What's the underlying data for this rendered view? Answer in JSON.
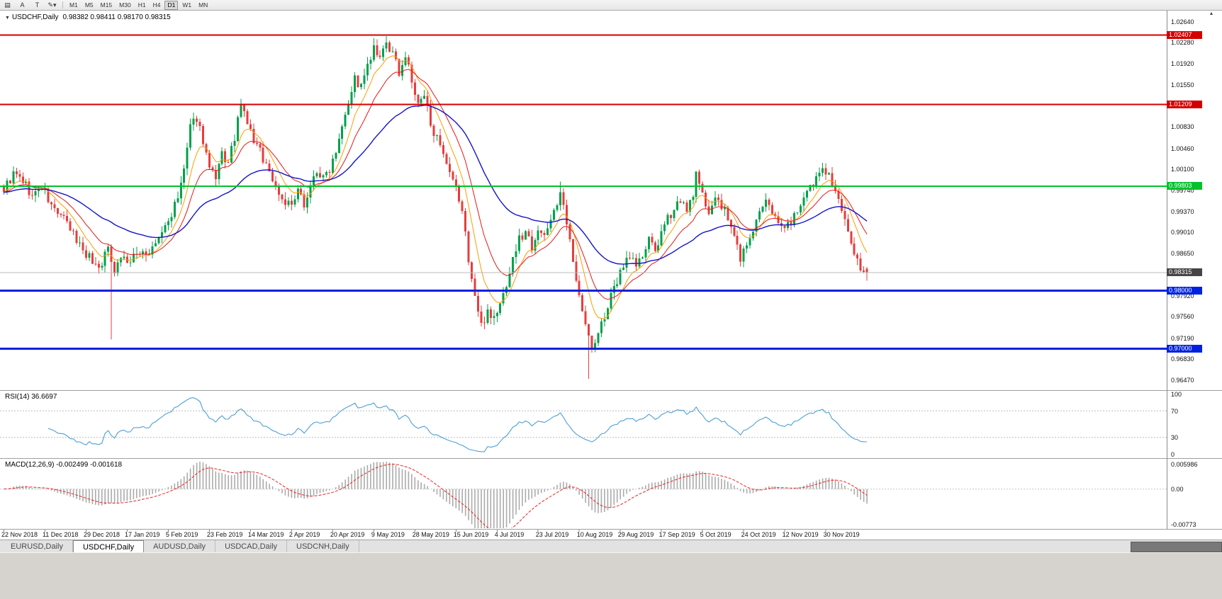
{
  "toolbar": {
    "tools": [
      {
        "name": "charts-bar-icon",
        "glyph": "▤"
      },
      {
        "name": "text-label-icon",
        "glyph": "A"
      },
      {
        "name": "shapes-icon",
        "glyph": "T"
      },
      {
        "name": "line-studies-icon",
        "glyph": "✎",
        "caret": "▾"
      }
    ],
    "timeframes": [
      {
        "label": "M1",
        "active": false
      },
      {
        "label": "M5",
        "active": false
      },
      {
        "label": "M15",
        "active": false
      },
      {
        "label": "M30",
        "active": false
      },
      {
        "label": "H1",
        "active": false
      },
      {
        "label": "H4",
        "active": false
      },
      {
        "label": "D1",
        "active": true
      },
      {
        "label": "W1",
        "active": false
      },
      {
        "label": "MN",
        "active": false
      }
    ]
  },
  "chart": {
    "symbol_dropdown_glyph": "▼",
    "symbol_label": "USDCHF,Daily",
    "ohlc_text": "0.98382 0.98411 0.98170 0.98315"
  },
  "panels": {
    "rsi": {
      "label": "RSI(14) 36.6697",
      "value": "36.6697",
      "axis_labels": [
        "100",
        "70",
        "30",
        "0"
      ],
      "level_values": [
        100,
        70,
        30,
        0
      ],
      "dashed_levels": [
        70,
        30
      ],
      "line_color": "#4D9FD6"
    },
    "macd": {
      "label": "MACD(12,26,9) -0.002499 -0.001618",
      "values": [
        "-0.002499",
        "-0.001618"
      ],
      "axis_labels": [
        "0.005986",
        "0.00",
        "-0.00773"
      ],
      "scale_max": 0.005986,
      "scale_min": -0.00773,
      "histogram_color": "#ABABAB",
      "signal_color": "#EE2222"
    }
  },
  "levels": [
    {
      "label": "1.02407",
      "price": 1.02407,
      "color": "#D40000",
      "width": 2
    },
    {
      "label": "1.01209",
      "price": 1.01209,
      "color": "#D40000",
      "width": 2
    },
    {
      "label": "0.99803",
      "price": 0.99803,
      "color": "#00C22B",
      "width": 2
    },
    {
      "label": "0.98000",
      "price": 0.98,
      "color": "#0022E0",
      "width": 3
    },
    {
      "label": "0.97000",
      "price": 0.97,
      "color": "#0022E0",
      "width": 3
    }
  ],
  "current_price": {
    "label": "0.98315",
    "price": 0.98315,
    "line_color": "#BBBBBB",
    "tag_color": "#454545"
  },
  "price_axis": {
    "scroll_glyph": "▲"
  },
  "tabs": [
    {
      "label": "EURUSD,Daily",
      "active": false
    },
    {
      "label": "USDCHF,Daily",
      "active": true
    },
    {
      "label": "AUDUSD,Daily",
      "active": false
    },
    {
      "label": "USDCAD,Daily",
      "active": false
    },
    {
      "label": "USDCNH,Daily",
      "active": false
    }
  ],
  "chart_data": {
    "type": "candlestick",
    "symbol": "USDCHF",
    "timeframe": "Daily",
    "ylim": [
      0.963,
      1.0284
    ],
    "num_candles": 274,
    "candles_per_label": 13,
    "up_color": "#00A14B",
    "down_color": "#E83C3C",
    "y_labels": [
      "1.02640",
      "1.02280",
      "1.01920",
      "1.01550",
      "1.01190",
      "1.00830",
      "1.00460",
      "1.00100",
      "0.99740",
      "0.99370",
      "0.99010",
      "0.98650",
      "0.97920",
      "0.97560",
      "0.97190",
      "0.96830",
      "0.96470"
    ],
    "x_labels": [
      "22 Nov 2018",
      "11 Dec 2018",
      "29 Dec 2018",
      "17 Jan 2019",
      "5 Feb 2019",
      "23 Feb 2019",
      "14 Mar 2019",
      "2 Apr 2019",
      "20 Apr 2019",
      "9 May 2019",
      "28 May 2019",
      "15 Jun 2019",
      "4 Jul 2019",
      "23 Jul 2019",
      "10 Aug 2019",
      "29 Aug 2019",
      "17 Sep 2019",
      "5 Oct 2019",
      "24 Oct 2019",
      "12 Nov 2019",
      "30 Nov 2019"
    ],
    "last_candle": {
      "open": 0.98382,
      "high": 0.98411,
      "low": 0.9817,
      "close": 0.98315
    },
    "close_anchors": [
      [
        0,
        0.9975
      ],
      [
        3,
        1.0
      ],
      [
        6,
        0.999
      ],
      [
        9,
        0.9962
      ],
      [
        12,
        0.998
      ],
      [
        15,
        0.9945
      ],
      [
        18,
        0.993
      ],
      [
        21,
        0.9905
      ],
      [
        24,
        0.988
      ],
      [
        27,
        0.9858
      ],
      [
        30,
        0.984
      ],
      [
        33,
        0.9872
      ],
      [
        35,
        0.9838
      ],
      [
        37,
        0.986
      ],
      [
        40,
        0.9848
      ],
      [
        43,
        0.987
      ],
      [
        46,
        0.9862
      ],
      [
        49,
        0.989
      ],
      [
        52,
        0.992
      ],
      [
        55,
        0.9958
      ],
      [
        57,
        1.001
      ],
      [
        59,
        1.0078
      ],
      [
        61,
        1.01
      ],
      [
        63,
        1.006
      ],
      [
        65,
        1.001
      ],
      [
        67,
        0.9988
      ],
      [
        69,
        1.0035
      ],
      [
        71,
        1.0018
      ],
      [
        73,
        1.0065
      ],
      [
        75,
        1.0118
      ],
      [
        77,
        1.009
      ],
      [
        79,
        1.0058
      ],
      [
        81,
        1.004
      ],
      [
        83,
        1.0018
      ],
      [
        85,
        0.9992
      ],
      [
        88,
        0.9958
      ],
      [
        91,
        0.9945
      ],
      [
        93,
        0.9968
      ],
      [
        95,
        0.9952
      ],
      [
        97,
        0.998
      ],
      [
        99,
        1.0008
      ],
      [
        101,
        0.9992
      ],
      [
        103,
        1.0012
      ],
      [
        105,
        1.0045
      ],
      [
        107,
        1.009
      ],
      [
        109,
        1.0128
      ],
      [
        111,
        1.0165
      ],
      [
        113,
        1.015
      ],
      [
        115,
        1.0185
      ],
      [
        117,
        1.0215
      ],
      [
        119,
        1.0195
      ],
      [
        121,
        1.0228
      ],
      [
        123,
        1.0205
      ],
      [
        125,
        1.0178
      ],
      [
        127,
        1.0205
      ],
      [
        129,
        1.016
      ],
      [
        131,
        1.0118
      ],
      [
        133,
        1.0135
      ],
      [
        135,
        1.0092
      ],
      [
        137,
        1.006
      ],
      [
        139,
        1.0028
      ],
      [
        141,
        0.9998
      ],
      [
        143,
        0.9975
      ],
      [
        145,
        0.9938
      ],
      [
        147,
        0.9855
      ],
      [
        149,
        0.979
      ],
      [
        151,
        0.9738
      ],
      [
        153,
        0.9768
      ],
      [
        155,
        0.9752
      ],
      [
        157,
        0.9775
      ],
      [
        159,
        0.9812
      ],
      [
        161,
        0.9855
      ],
      [
        163,
        0.9888
      ],
      [
        165,
        0.9902
      ],
      [
        167,
        0.9878
      ],
      [
        169,
        0.991
      ],
      [
        171,
        0.9888
      ],
      [
        173,
        0.9928
      ],
      [
        175,
        0.9952
      ],
      [
        176,
        0.9965
      ],
      [
        178,
        0.9915
      ],
      [
        180,
        0.9848
      ],
      [
        182,
        0.98
      ],
      [
        184,
        0.974
      ],
      [
        186,
        0.9698
      ],
      [
        188,
        0.9725
      ],
      [
        190,
        0.9758
      ],
      [
        192,
        0.9788
      ],
      [
        194,
        0.9815
      ],
      [
        196,
        0.9848
      ],
      [
        198,
        0.9862
      ],
      [
        200,
        0.9845
      ],
      [
        202,
        0.9858
      ],
      [
        204,
        0.9885
      ],
      [
        206,
        0.9872
      ],
      [
        208,
        0.9895
      ],
      [
        210,
        0.9922
      ],
      [
        212,
        0.9945
      ],
      [
        214,
        0.9958
      ],
      [
        216,
        0.9932
      ],
      [
        218,
        0.997
      ],
      [
        219,
        0.9998
      ],
      [
        221,
        0.9962
      ],
      [
        223,
        0.994
      ],
      [
        225,
        0.9958
      ],
      [
        227,
        0.9945
      ],
      [
        229,
        0.9925
      ],
      [
        231,
        0.9892
      ],
      [
        233,
        0.9858
      ],
      [
        235,
        0.9878
      ],
      [
        237,
        0.9905
      ],
      [
        239,
        0.9932
      ],
      [
        241,
        0.995
      ],
      [
        243,
        0.9938
      ],
      [
        245,
        0.9925
      ],
      [
        247,
        0.9905
      ],
      [
        249,
        0.9922
      ],
      [
        251,
        0.9938
      ],
      [
        253,
        0.9952
      ],
      [
        255,
        0.9975
      ],
      [
        257,
        0.9992
      ],
      [
        259,
        1.0015
      ],
      [
        261,
        1.0002
      ],
      [
        263,
        0.9968
      ],
      [
        265,
        0.9935
      ],
      [
        267,
        0.9902
      ],
      [
        269,
        0.9868
      ],
      [
        271,
        0.9838
      ],
      [
        273,
        0.98315
      ]
    ],
    "special_wicks": [
      {
        "i": 34,
        "low": 0.9716
      },
      {
        "i": 121,
        "high": 1.0239
      },
      {
        "i": 176,
        "high": 0.9988
      },
      {
        "i": 185,
        "low": 0.9648
      }
    ],
    "moving_averages": [
      {
        "name": "ma-fast-orange-line",
        "type": "ema",
        "period": 8,
        "color": "#FF9C00"
      },
      {
        "name": "ma-mid-red-line",
        "type": "ema",
        "period": 16,
        "color": "#E81717"
      },
      {
        "name": "ma-slow-blue-line",
        "type": "ema",
        "period": 45,
        "color": "#1414CC"
      }
    ]
  }
}
